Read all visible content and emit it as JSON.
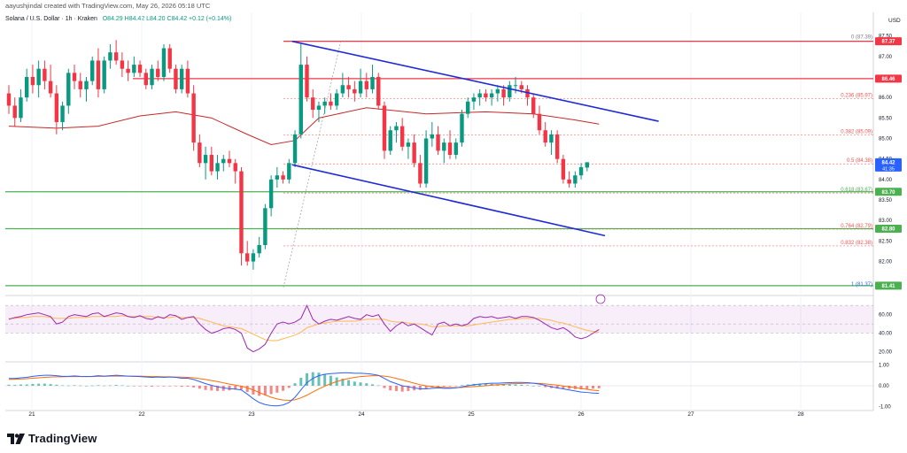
{
  "header": {
    "author_line": "aayushjindal created with TradingView.com, May 26, 2026 05:18 UTC",
    "symbol": "Solana / U.S. Dollar · 1h · Kraken",
    "ohlc": "O84.29  H84.42  L84.20  C84.42  +0.12 (+0.14%)"
  },
  "brand": {
    "name": "TradingView"
  },
  "colors": {
    "up": "#089981",
    "down": "#f23645",
    "channel": "#1e2ad6",
    "ma": "#e57373",
    "fib": "#ef5350",
    "support": "#4caf50",
    "resistance": "#f23645",
    "rsi": "#9c27b0",
    "rsi_ma": "#ffb74d",
    "macd": "#2962ff",
    "signal": "#ff6d00"
  },
  "chart_data": [
    {
      "type": "candlestick",
      "currency_label": "USD",
      "y_ticks": [
        "82.00",
        "82.50",
        "83.00",
        "83.50",
        "84.00",
        "84.50",
        "85.00",
        "85.50",
        "86.00",
        "86.50",
        "87.00",
        "87.50"
      ],
      "x_tick_labels": [
        "21",
        "22",
        "23",
        "24",
        "25",
        "26",
        "27",
        "28"
      ],
      "ylim": [
        81.3,
        87.6
      ],
      "candles": [
        [
          86.1,
          86.3,
          85.6,
          85.8
        ],
        [
          85.8,
          86.0,
          85.3,
          85.5
        ],
        [
          85.5,
          86.2,
          85.4,
          86.0
        ],
        [
          86.0,
          86.7,
          85.9,
          86.5
        ],
        [
          86.5,
          86.8,
          86.1,
          86.3
        ],
        [
          86.3,
          86.9,
          86.0,
          86.7
        ],
        [
          86.7,
          86.9,
          86.2,
          86.4
        ],
        [
          86.4,
          86.8,
          86.0,
          86.1
        ],
        [
          86.1,
          86.3,
          85.1,
          85.4
        ],
        [
          85.4,
          85.9,
          85.2,
          85.8
        ],
        [
          85.8,
          86.7,
          85.6,
          86.6
        ],
        [
          86.6,
          86.8,
          86.2,
          86.4
        ],
        [
          86.4,
          86.6,
          86.0,
          86.2
        ],
        [
          86.2,
          86.5,
          85.9,
          86.4
        ],
        [
          86.4,
          87.0,
          86.3,
          86.9
        ],
        [
          86.9,
          87.2,
          86.0,
          86.2
        ],
        [
          86.2,
          87.0,
          86.1,
          86.9
        ],
        [
          86.9,
          87.3,
          86.7,
          87.1
        ],
        [
          87.1,
          87.4,
          86.8,
          86.9
        ],
        [
          86.9,
          87.1,
          86.5,
          86.7
        ],
        [
          86.7,
          86.9,
          86.4,
          86.6
        ],
        [
          86.6,
          87.0,
          86.5,
          86.8
        ],
        [
          86.8,
          86.9,
          86.5,
          86.6
        ],
        [
          86.6,
          86.7,
          86.2,
          86.3
        ],
        [
          86.3,
          86.8,
          86.2,
          86.7
        ],
        [
          86.7,
          86.9,
          86.4,
          86.5
        ],
        [
          86.5,
          87.3,
          86.4,
          87.2
        ],
        [
          87.2,
          87.3,
          86.6,
          86.7
        ],
        [
          86.7,
          86.8,
          86.1,
          86.2
        ],
        [
          86.2,
          86.8,
          86.1,
          86.7
        ],
        [
          86.7,
          86.9,
          86.0,
          86.1
        ],
        [
          86.1,
          86.3,
          84.7,
          84.9
        ],
        [
          84.9,
          85.1,
          84.3,
          84.4
        ],
        [
          84.4,
          84.8,
          84.0,
          84.6
        ],
        [
          84.6,
          84.8,
          84.1,
          84.2
        ],
        [
          84.2,
          84.6,
          84.0,
          84.4
        ],
        [
          84.4,
          84.6,
          84.2,
          84.5
        ],
        [
          84.5,
          84.7,
          84.3,
          84.4
        ],
        [
          84.4,
          84.5,
          83.9,
          84.2
        ],
        [
          84.2,
          84.3,
          81.9,
          82.2
        ],
        [
          82.2,
          82.5,
          81.9,
          82.0
        ],
        [
          82.0,
          82.3,
          81.8,
          82.2
        ],
        [
          82.2,
          82.6,
          82.1,
          82.4
        ],
        [
          82.4,
          83.4,
          82.3,
          83.3
        ],
        [
          83.3,
          84.1,
          83.1,
          84.0
        ],
        [
          84.0,
          84.3,
          83.8,
          84.1
        ],
        [
          84.1,
          84.2,
          83.9,
          84.0
        ],
        [
          84.0,
          84.5,
          83.9,
          84.4
        ],
        [
          84.4,
          85.2,
          84.3,
          85.1
        ],
        [
          85.1,
          87.3,
          85.0,
          86.8
        ],
        [
          86.8,
          87.0,
          85.9,
          86.0
        ],
        [
          86.0,
          86.2,
          85.5,
          85.7
        ],
        [
          85.7,
          85.9,
          85.4,
          85.8
        ],
        [
          85.8,
          86.0,
          85.6,
          85.9
        ],
        [
          85.9,
          86.1,
          85.7,
          85.8
        ],
        [
          85.8,
          86.2,
          85.7,
          86.1
        ],
        [
          86.1,
          86.6,
          86.0,
          86.3
        ],
        [
          86.3,
          86.5,
          86.0,
          86.2
        ],
        [
          86.2,
          86.4,
          85.9,
          86.1
        ],
        [
          86.1,
          86.7,
          86.0,
          86.4
        ],
        [
          86.4,
          86.6,
          86.0,
          86.2
        ],
        [
          86.2,
          86.8,
          86.1,
          86.5
        ],
        [
          86.5,
          86.6,
          85.7,
          85.8
        ],
        [
          85.8,
          85.9,
          84.5,
          84.7
        ],
        [
          84.7,
          85.3,
          84.6,
          85.2
        ],
        [
          85.2,
          85.4,
          84.9,
          85.3
        ],
        [
          85.3,
          85.5,
          84.7,
          84.8
        ],
        [
          84.8,
          85.0,
          84.5,
          84.9
        ],
        [
          84.9,
          85.1,
          84.3,
          84.4
        ],
        [
          84.4,
          84.6,
          83.8,
          83.9
        ],
        [
          83.9,
          85.2,
          83.8,
          85.0
        ],
        [
          85.0,
          85.4,
          84.8,
          85.1
        ],
        [
          85.1,
          85.3,
          84.6,
          84.7
        ],
        [
          84.7,
          85.0,
          84.4,
          84.9
        ],
        [
          84.9,
          85.2,
          84.5,
          84.6
        ],
        [
          84.6,
          85.0,
          84.5,
          84.9
        ],
        [
          84.9,
          85.7,
          84.8,
          85.6
        ],
        [
          85.6,
          86.0,
          85.5,
          85.9
        ],
        [
          85.9,
          86.1,
          85.7,
          86.0
        ],
        [
          86.0,
          86.2,
          85.8,
          86.1
        ],
        [
          86.1,
          86.2,
          85.9,
          86.0
        ],
        [
          86.0,
          86.2,
          85.8,
          86.1
        ],
        [
          86.1,
          86.3,
          85.9,
          86.2
        ],
        [
          86.2,
          86.3,
          85.8,
          86.0
        ],
        [
          86.0,
          86.4,
          85.9,
          86.3
        ],
        [
          86.3,
          86.5,
          86.1,
          86.3
        ],
        [
          86.3,
          86.4,
          86.1,
          86.2
        ],
        [
          86.2,
          86.3,
          85.8,
          86.0
        ],
        [
          86.0,
          86.1,
          85.5,
          85.6
        ],
        [
          85.6,
          85.8,
          85.1,
          85.2
        ],
        [
          85.2,
          85.4,
          84.8,
          84.9
        ],
        [
          84.9,
          85.2,
          84.6,
          85.1
        ],
        [
          85.1,
          85.2,
          84.4,
          84.5
        ],
        [
          84.5,
          84.6,
          83.9,
          84.0
        ],
        [
          84.0,
          84.2,
          83.8,
          83.9
        ],
        [
          83.9,
          84.2,
          83.8,
          84.1
        ],
        [
          84.1,
          84.4,
          84.0,
          84.3
        ],
        [
          84.29,
          84.42,
          84.2,
          84.42
        ]
      ],
      "moving_average": [
        [
          0,
          85.3
        ],
        [
          8,
          85.25
        ],
        [
          15,
          85.3
        ],
        [
          22,
          85.55
        ],
        [
          28,
          85.65
        ],
        [
          34,
          85.5
        ],
        [
          40,
          85.1
        ],
        [
          44,
          84.85
        ],
        [
          48,
          84.95
        ],
        [
          52,
          85.5
        ],
        [
          60,
          85.75
        ],
        [
          70,
          85.6
        ],
        [
          80,
          85.65
        ],
        [
          88,
          85.6
        ],
        [
          95,
          85.45
        ],
        [
          99,
          85.35
        ]
      ],
      "price_labels": [
        {
          "value": 87.37,
          "text": "87.37",
          "color": "#f23645"
        },
        {
          "value": 86.46,
          "text": "86.46",
          "color": "#f23645"
        },
        {
          "value": 84.42,
          "text": "84.42",
          "sub": "41:35",
          "color": "#2962ff"
        },
        {
          "value": 83.7,
          "text": "83.70",
          "color": "#4caf50"
        },
        {
          "value": 82.8,
          "text": "82.80",
          "color": "#4caf50"
        },
        {
          "value": 81.41,
          "text": "81.41",
          "color": "#4caf50"
        }
      ],
      "horizontal_levels": [
        {
          "value": 87.37,
          "color": "#f23645"
        },
        {
          "value": 86.46,
          "color": "#f23645"
        },
        {
          "value": 83.7,
          "color": "#4caf50"
        },
        {
          "value": 82.8,
          "color": "#4caf50"
        },
        {
          "value": 81.41,
          "color": "#4caf50"
        }
      ],
      "fib_levels": [
        {
          "value": 87.39,
          "label": "0 (87.39)"
        },
        {
          "value": 85.97,
          "label": "0.236 (85.97)"
        },
        {
          "value": 85.09,
          "label": "0.382 (85.09)"
        },
        {
          "value": 84.38,
          "label": "0.5 (84.38)"
        },
        {
          "value": 83.67,
          "label": "0.618 (83.67)"
        },
        {
          "value": 82.79,
          "label": "0.764 (82.79)"
        },
        {
          "value": 82.38,
          "label": "0.832 (82.38)"
        },
        {
          "value": 81.37,
          "label": "1 (81.37)"
        }
      ],
      "channel_lines": [
        {
          "from": [
            49,
            87.37
          ],
          "to": [
            109,
            85.42
          ]
        },
        {
          "from": [
            49,
            84.36
          ],
          "to": [
            100,
            82.63
          ]
        }
      ]
    },
    {
      "type": "line",
      "name": "RSI",
      "y_ticks": [
        "20.00",
        "40.00",
        "60.00"
      ],
      "ylim": [
        10,
        75
      ],
      "band": [
        40,
        70
      ],
      "rsi": [
        55,
        57,
        58,
        60,
        61,
        62,
        60,
        58,
        50,
        52,
        58,
        60,
        59,
        58,
        61,
        62,
        58,
        60,
        62,
        61,
        58,
        57,
        59,
        56,
        55,
        58,
        56,
        60,
        59,
        55,
        57,
        58,
        50,
        44,
        40,
        42,
        45,
        46,
        44,
        40,
        24,
        20,
        23,
        28,
        40,
        50,
        52,
        50,
        52,
        56,
        70,
        55,
        50,
        53,
        55,
        54,
        56,
        58,
        56,
        55,
        60,
        58,
        60,
        50,
        42,
        48,
        52,
        48,
        50,
        46,
        42,
        38,
        50,
        52,
        48,
        50,
        48,
        50,
        56,
        58,
        57,
        58,
        56,
        57,
        58,
        56,
        58,
        58,
        57,
        54,
        50,
        46,
        44,
        46,
        42,
        36,
        34,
        36,
        40,
        44
      ],
      "rsi_ma": [
        56,
        56,
        57,
        57,
        58,
        58,
        58,
        57,
        56,
        56,
        56,
        57,
        57,
        57,
        58,
        58,
        58,
        58,
        58,
        59,
        58,
        58,
        58,
        58,
        58,
        57,
        57,
        57,
        58,
        57,
        57,
        57,
        56,
        54,
        52,
        50,
        48,
        47,
        46,
        45,
        42,
        39,
        36,
        33,
        32,
        32,
        34,
        36,
        38,
        41,
        46,
        48,
        50,
        51,
        52,
        53,
        53,
        53,
        53,
        54,
        55,
        55,
        55,
        55,
        53,
        52,
        52,
        51,
        50,
        50,
        49,
        47,
        47,
        48,
        48,
        48,
        48,
        48,
        49,
        50,
        51,
        52,
        53,
        54,
        55,
        55,
        56,
        56,
        56,
        56,
        55,
        54,
        52,
        51,
        49,
        47,
        45,
        43,
        42,
        41
      ]
    },
    {
      "type": "line",
      "name": "MACD",
      "y_ticks": [
        "-1.00",
        "0.00",
        "1.00"
      ],
      "ylim": [
        -1.1,
        1.1
      ],
      "macd": [
        0.35,
        0.35,
        0.38,
        0.4,
        0.45,
        0.48,
        0.5,
        0.5,
        0.48,
        0.45,
        0.45,
        0.47,
        0.45,
        0.44,
        0.45,
        0.48,
        0.46,
        0.48,
        0.5,
        0.48,
        0.46,
        0.45,
        0.44,
        0.42,
        0.4,
        0.42,
        0.4,
        0.42,
        0.4,
        0.36,
        0.36,
        0.3,
        0.2,
        0.1,
        0.02,
        -0.05,
        -0.1,
        -0.14,
        -0.16,
        -0.2,
        -0.4,
        -0.62,
        -0.8,
        -0.9,
        -0.95,
        -0.96,
        -0.92,
        -0.8,
        -0.55,
        -0.2,
        0.15,
        0.35,
        0.48,
        0.55,
        0.58,
        0.6,
        0.62,
        0.62,
        0.6,
        0.6,
        0.58,
        0.55,
        0.5,
        0.35,
        0.2,
        0.1,
        0.0,
        -0.05,
        -0.1,
        -0.15,
        -0.15,
        -0.12,
        -0.1,
        -0.12,
        -0.12,
        -0.1,
        -0.05,
        0.0,
        0.05,
        0.08,
        0.1,
        0.12,
        0.12,
        0.14,
        0.15,
        0.16,
        0.16,
        0.15,
        0.12,
        0.08,
        0.02,
        -0.05,
        -0.1,
        -0.15,
        -0.2,
        -0.25,
        -0.3,
        -0.32,
        -0.35,
        -0.36
      ],
      "signal": [
        0.3,
        0.31,
        0.32,
        0.34,
        0.36,
        0.38,
        0.4,
        0.42,
        0.43,
        0.43,
        0.44,
        0.44,
        0.44,
        0.44,
        0.44,
        0.45,
        0.45,
        0.46,
        0.46,
        0.46,
        0.46,
        0.46,
        0.46,
        0.45,
        0.44,
        0.44,
        0.43,
        0.43,
        0.42,
        0.41,
        0.4,
        0.38,
        0.34,
        0.3,
        0.25,
        0.2,
        0.14,
        0.08,
        0.03,
        -0.02,
        -0.1,
        -0.2,
        -0.32,
        -0.44,
        -0.55,
        -0.63,
        -0.68,
        -0.7,
        -0.67,
        -0.58,
        -0.45,
        -0.3,
        -0.15,
        -0.02,
        0.1,
        0.2,
        0.28,
        0.35,
        0.4,
        0.44,
        0.46,
        0.48,
        0.48,
        0.46,
        0.42,
        0.35,
        0.28,
        0.2,
        0.12,
        0.05,
        0.0,
        -0.04,
        -0.06,
        -0.08,
        -0.09,
        -0.09,
        -0.08,
        -0.06,
        -0.04,
        -0.02,
        0.0,
        0.03,
        0.05,
        0.07,
        0.09,
        0.1,
        0.11,
        0.12,
        0.12,
        0.11,
        0.09,
        0.06,
        0.03,
        -0.01,
        -0.05,
        -0.09,
        -0.13,
        -0.17,
        -0.21,
        -0.24
      ]
    }
  ]
}
